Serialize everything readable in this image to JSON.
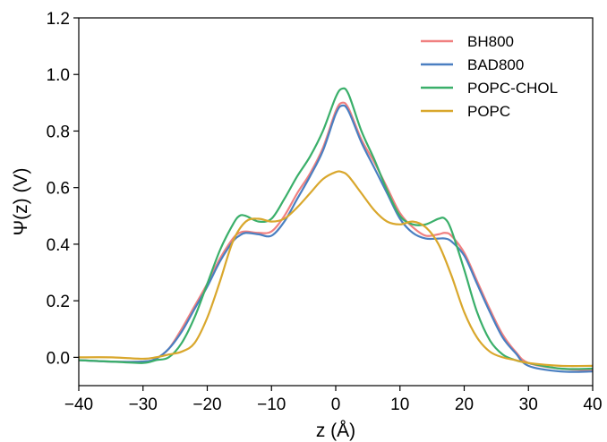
{
  "chart_data": {
    "type": "line",
    "title": "",
    "xlabel": "z (Å)",
    "ylabel": "Ψ(z) (V)",
    "xlim": [
      -40,
      40
    ],
    "ylim": [
      -0.1,
      1.2
    ],
    "xticks": [
      -40,
      -30,
      -20,
      -10,
      0,
      10,
      20,
      30,
      40
    ],
    "xtick_labels": [
      "−40",
      "−30",
      "−20",
      "−10",
      "0",
      "10",
      "20",
      "30",
      "40"
    ],
    "yticks": [
      0.0,
      0.2,
      0.4,
      0.6,
      0.8,
      1.0,
      1.2
    ],
    "ytick_labels": [
      "0.0",
      "0.2",
      "0.4",
      "0.6",
      "0.8",
      "1.0",
      "1.2"
    ],
    "grid": false,
    "legend_position": "top-right",
    "series": [
      {
        "name": "BH800",
        "color": "#f08080",
        "x": [
          -40,
          -35,
          -30,
          -28,
          -26,
          -24,
          -22,
          -20,
          -18,
          -16,
          -15,
          -14,
          -12,
          -10,
          -8,
          -6,
          -4,
          -2,
          0,
          1,
          2,
          4,
          6,
          8,
          10,
          12,
          14,
          16,
          17,
          18,
          20,
          22,
          24,
          26,
          28,
          30,
          35,
          40
        ],
        "y": [
          -0.01,
          -0.015,
          -0.015,
          -0.005,
          0.03,
          0.1,
          0.18,
          0.26,
          0.35,
          0.42,
          0.44,
          0.445,
          0.44,
          0.445,
          0.5,
          0.58,
          0.65,
          0.74,
          0.87,
          0.9,
          0.88,
          0.77,
          0.69,
          0.6,
          0.51,
          0.46,
          0.43,
          0.435,
          0.44,
          0.43,
          0.37,
          0.27,
          0.17,
          0.08,
          0.02,
          -0.02,
          -0.04,
          -0.045
        ]
      },
      {
        "name": "BAD800",
        "color": "#4a7fc1",
        "x": [
          -40,
          -35,
          -30,
          -28,
          -26,
          -24,
          -22,
          -20,
          -18,
          -16,
          -15,
          -14,
          -12,
          -10,
          -8,
          -6,
          -4,
          -2,
          0,
          1,
          2,
          4,
          6,
          8,
          10,
          12,
          14,
          16,
          17,
          18,
          20,
          22,
          24,
          26,
          28,
          30,
          35,
          40
        ],
        "y": [
          -0.01,
          -0.015,
          -0.015,
          -0.005,
          0.03,
          0.09,
          0.17,
          0.25,
          0.34,
          0.41,
          0.43,
          0.44,
          0.435,
          0.43,
          0.48,
          0.56,
          0.64,
          0.73,
          0.86,
          0.89,
          0.87,
          0.76,
          0.67,
          0.58,
          0.49,
          0.44,
          0.42,
          0.42,
          0.42,
          0.41,
          0.36,
          0.26,
          0.16,
          0.07,
          0.015,
          -0.03,
          -0.05,
          -0.05
        ]
      },
      {
        "name": "POPC-CHOL",
        "color": "#3aaf6a",
        "x": [
          -40,
          -35,
          -30,
          -28,
          -26,
          -24,
          -22,
          -20,
          -18,
          -16,
          -15,
          -14,
          -12,
          -10,
          -8,
          -6,
          -4,
          -2,
          0,
          1,
          2,
          4,
          6,
          8,
          10,
          12,
          14,
          16,
          17,
          18,
          20,
          22,
          24,
          26,
          28,
          30,
          35,
          40
        ],
        "y": [
          -0.01,
          -0.015,
          -0.02,
          -0.01,
          0.0,
          0.05,
          0.14,
          0.26,
          0.38,
          0.47,
          0.5,
          0.5,
          0.48,
          0.49,
          0.56,
          0.64,
          0.71,
          0.8,
          0.92,
          0.95,
          0.93,
          0.8,
          0.7,
          0.59,
          0.5,
          0.47,
          0.47,
          0.49,
          0.49,
          0.45,
          0.31,
          0.16,
          0.06,
          0.01,
          -0.01,
          -0.02,
          -0.04,
          -0.04
        ]
      },
      {
        "name": "POPC",
        "color": "#d9a72c",
        "x": [
          -40,
          -35,
          -30,
          -28,
          -26,
          -24,
          -22,
          -20,
          -18,
          -16,
          -14,
          -12,
          -10,
          -8,
          -6,
          -4,
          -2,
          0,
          1,
          2,
          4,
          6,
          8,
          10,
          12,
          14,
          16,
          18,
          20,
          22,
          24,
          26,
          28,
          30,
          35,
          40
        ],
        "y": [
          0.0,
          0.0,
          -0.005,
          0.0,
          0.01,
          0.02,
          0.05,
          0.14,
          0.27,
          0.41,
          0.48,
          0.49,
          0.48,
          0.49,
          0.53,
          0.58,
          0.63,
          0.655,
          0.655,
          0.64,
          0.58,
          0.52,
          0.48,
          0.47,
          0.48,
          0.46,
          0.4,
          0.29,
          0.16,
          0.07,
          0.02,
          0.0,
          -0.01,
          -0.02,
          -0.03,
          -0.03
        ]
      }
    ]
  }
}
